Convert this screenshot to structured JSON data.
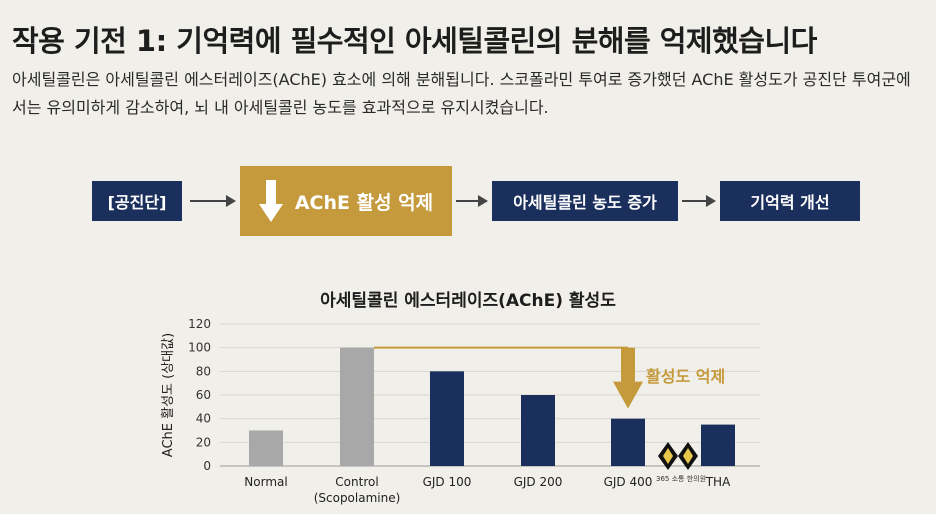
{
  "title": "작용 기전 1: 기억력에 필수적인 아세틸콜린의 분해를 억제했습니다",
  "description": "아세틸콜린은 아세틸콜린 에스터레이즈(AChE) 효소에 의해 분해됩니다. 스코폴라민 투여로 증가했던 AChE 활성도가 공진단 투여군에서는 유의미하게 감소하여, 뇌 내 아세틸콜린 농도를 효과적으로 유지시켰습니다.",
  "flow": {
    "step1": "[공진단]",
    "step2": "AChE 활성 억제",
    "step3": "아세틸콜린 농도 증가",
    "step4": "기억력 개선"
  },
  "chart_data": {
    "type": "bar",
    "title": "아세틸콜린 에스터레이즈(AChE) 활성도",
    "ylabel": "AChE 활성도 (상대값)",
    "ylim": [
      0,
      120
    ],
    "yticks": [
      "0",
      "20",
      "40",
      "60",
      "80",
      "100",
      "120"
    ],
    "categories": [
      "Normal",
      "Control\n(Scopolamine)",
      "GJD 100",
      "GJD 200",
      "GJD 400",
      "THA"
    ],
    "values": [
      30,
      100,
      80,
      60,
      40,
      35
    ],
    "colors": [
      "#a8a8a8",
      "#a8a8a8",
      "#1b2f5c",
      "#1b2f5c",
      "#1b2f5c",
      "#1b2f5c"
    ],
    "annotation": "활성도 억제",
    "annotation_color": "#c59a3c",
    "grid": true
  },
  "logo": {
    "text": "365 소통 한의원"
  },
  "colors": {
    "navy": "#1b2f5c",
    "gold": "#c59a3c",
    "gray": "#a8a8a8"
  }
}
